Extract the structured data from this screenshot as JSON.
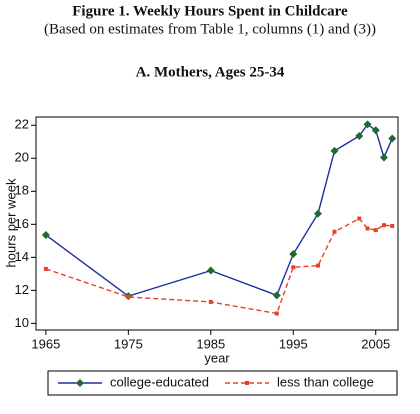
{
  "chart_data": {
    "type": "line",
    "title": "Figure 1.  Weekly Hours Spent in Childcare",
    "subtitle": "(Based on estimates from Table 1, columns (1) and (3))",
    "panel_title": "A.  Mothers, Ages 25-34",
    "xlabel": "year",
    "ylabel": "hours per week",
    "x": [
      1965,
      1975,
      1985,
      1993,
      1995,
      1998,
      2000,
      2003,
      2004,
      2005,
      2006,
      2007
    ],
    "series": [
      {
        "name": "college-educated",
        "color": "#1f2f9e",
        "marker_color": "#1e6b2f",
        "marker": "diamond",
        "dashed": false,
        "values": [
          15.35,
          11.65,
          13.2,
          11.7,
          14.2,
          16.65,
          20.45,
          21.35,
          22.05,
          21.7,
          20.05,
          21.2
        ]
      },
      {
        "name": "less than college",
        "color": "#e8402a",
        "marker_color": "#e8402a",
        "marker": "square",
        "dashed": true,
        "values": [
          13.3,
          11.6,
          11.3,
          10.6,
          13.4,
          13.5,
          15.55,
          16.35,
          15.75,
          15.65,
          15.95,
          15.9
        ]
      }
    ],
    "xlim": [
      1963.8,
      2007.7
    ],
    "ylim": [
      9.6,
      22.5
    ],
    "xticks": [
      1965,
      1975,
      1985,
      1995,
      2005
    ],
    "yticks": [
      10,
      12,
      14,
      16,
      18,
      20,
      22
    ],
    "grid": false,
    "legend": "bottom"
  }
}
